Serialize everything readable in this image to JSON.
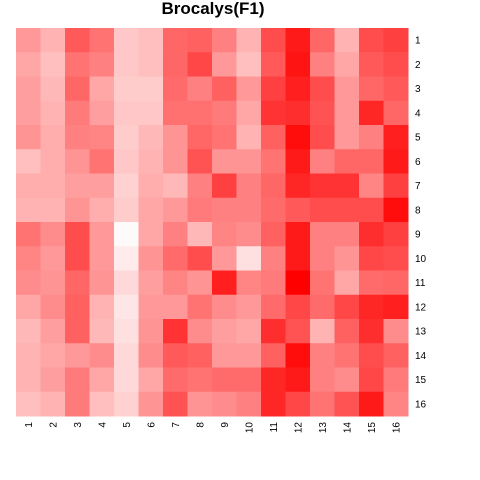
{
  "chart_data": {
    "type": "heatmap",
    "title": "Brocalys(F1)",
    "xlabel": "",
    "ylabel": "",
    "x_labels": [
      "1",
      "2",
      "3",
      "4",
      "5",
      "6",
      "7",
      "8",
      "9",
      "10",
      "11",
      "12",
      "13",
      "14",
      "15",
      "16"
    ],
    "y_labels": [
      "1",
      "2",
      "3",
      "4",
      "5",
      "6",
      "7",
      "8",
      "9",
      "10",
      "11",
      "12",
      "13",
      "14",
      "15",
      "16"
    ],
    "value_range": [
      0,
      1
    ],
    "color_low": "#ffffff",
    "color_high": "#ff0000",
    "legend": "none",
    "values": [
      [
        0.4,
        0.3,
        0.65,
        0.55,
        0.22,
        0.25,
        0.6,
        0.62,
        0.5,
        0.3,
        0.7,
        0.9,
        0.6,
        0.3,
        0.7,
        0.75
      ],
      [
        0.35,
        0.25,
        0.55,
        0.5,
        0.22,
        0.25,
        0.6,
        0.72,
        0.4,
        0.25,
        0.65,
        0.92,
        0.5,
        0.35,
        0.65,
        0.7
      ],
      [
        0.38,
        0.28,
        0.6,
        0.35,
        0.2,
        0.2,
        0.58,
        0.5,
        0.62,
        0.4,
        0.75,
        0.88,
        0.7,
        0.4,
        0.6,
        0.65
      ],
      [
        0.38,
        0.3,
        0.52,
        0.38,
        0.22,
        0.22,
        0.56,
        0.56,
        0.52,
        0.35,
        0.8,
        0.82,
        0.68,
        0.4,
        0.85,
        0.6
      ],
      [
        0.42,
        0.32,
        0.5,
        0.48,
        0.2,
        0.28,
        0.42,
        0.6,
        0.55,
        0.3,
        0.62,
        0.95,
        0.7,
        0.4,
        0.5,
        0.88
      ],
      [
        0.25,
        0.32,
        0.42,
        0.55,
        0.22,
        0.3,
        0.42,
        0.68,
        0.42,
        0.42,
        0.55,
        0.9,
        0.5,
        0.6,
        0.6,
        0.9
      ],
      [
        0.32,
        0.32,
        0.38,
        0.38,
        0.18,
        0.32,
        0.28,
        0.5,
        0.75,
        0.5,
        0.6,
        0.85,
        0.8,
        0.8,
        0.48,
        0.75
      ],
      [
        0.3,
        0.3,
        0.42,
        0.32,
        0.2,
        0.35,
        0.4,
        0.52,
        0.5,
        0.5,
        0.58,
        0.65,
        0.7,
        0.7,
        0.7,
        0.95
      ],
      [
        0.55,
        0.45,
        0.7,
        0.4,
        0.02,
        0.35,
        0.5,
        0.28,
        0.48,
        0.45,
        0.62,
        0.9,
        0.5,
        0.5,
        0.82,
        0.75
      ],
      [
        0.48,
        0.4,
        0.7,
        0.4,
        0.08,
        0.42,
        0.58,
        0.7,
        0.4,
        0.12,
        0.5,
        0.9,
        0.5,
        0.42,
        0.72,
        0.7
      ],
      [
        0.45,
        0.42,
        0.6,
        0.42,
        0.15,
        0.38,
        0.48,
        0.42,
        0.88,
        0.48,
        0.52,
        1.0,
        0.55,
        0.35,
        0.58,
        0.6
      ],
      [
        0.35,
        0.45,
        0.62,
        0.3,
        0.1,
        0.4,
        0.4,
        0.55,
        0.45,
        0.4,
        0.58,
        0.72,
        0.58,
        0.72,
        0.85,
        0.88
      ],
      [
        0.28,
        0.38,
        0.62,
        0.28,
        0.12,
        0.42,
        0.8,
        0.45,
        0.38,
        0.35,
        0.82,
        0.68,
        0.3,
        0.62,
        0.82,
        0.45
      ],
      [
        0.3,
        0.35,
        0.4,
        0.45,
        0.15,
        0.45,
        0.65,
        0.62,
        0.4,
        0.4,
        0.62,
        0.95,
        0.5,
        0.55,
        0.7,
        0.62
      ],
      [
        0.3,
        0.38,
        0.52,
        0.35,
        0.15,
        0.35,
        0.58,
        0.55,
        0.58,
        0.58,
        0.85,
        0.9,
        0.5,
        0.45,
        0.72,
        0.52
      ],
      [
        0.25,
        0.3,
        0.52,
        0.25,
        0.18,
        0.42,
        0.68,
        0.42,
        0.45,
        0.5,
        0.85,
        0.72,
        0.55,
        0.68,
        0.9,
        0.48
      ]
    ]
  }
}
